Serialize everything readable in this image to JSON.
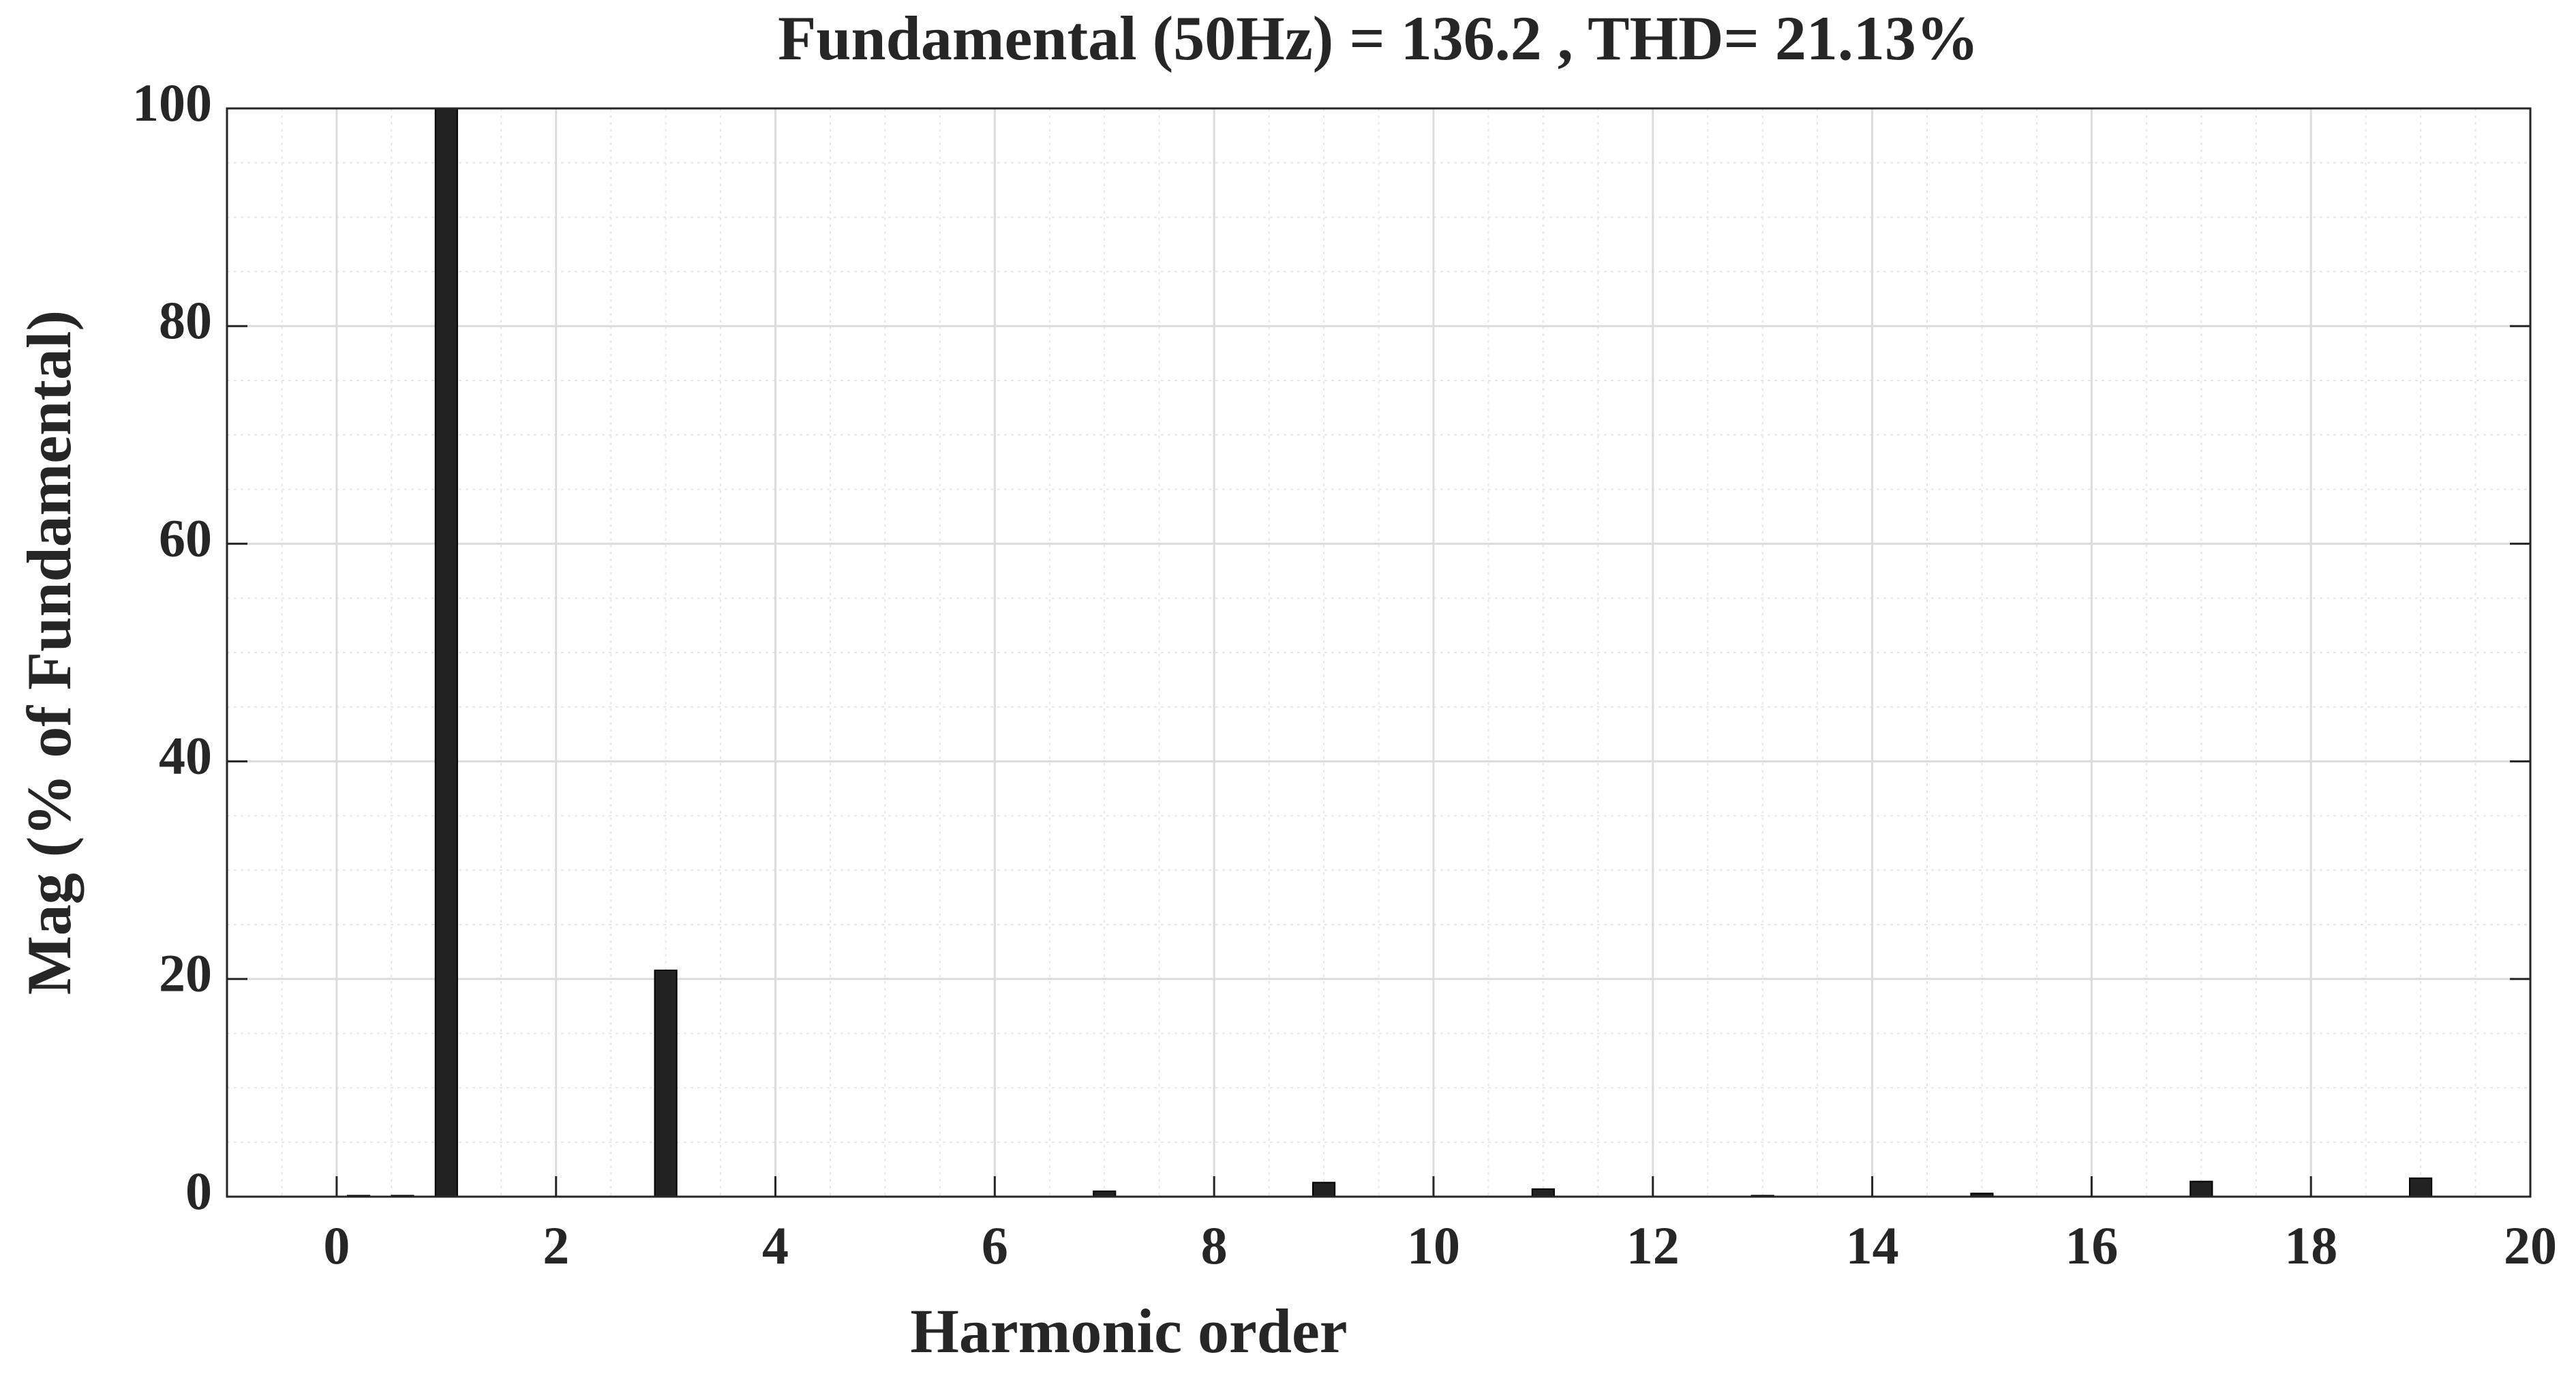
{
  "chart_data": {
    "type": "bar",
    "title": "Fundamental (50Hz) = 136.2 , THD= 21.13%",
    "x_label": "Harmonic order",
    "y_label": "Mag (% of Fundamental)",
    "x": [
      0.2,
      0.6,
      1,
      3,
      7,
      9,
      11,
      13,
      15,
      17,
      19
    ],
    "values": [
      0.1,
      0.1,
      100,
      20.8,
      0.5,
      1.3,
      0.7,
      0.1,
      0.3,
      1.4,
      1.7
    ],
    "color": "#222222",
    "xlim": [
      -1,
      20
    ],
    "xticks": [
      0,
      2,
      4,
      6,
      8,
      10,
      12,
      14,
      16,
      18,
      20
    ],
    "ylim": [
      0,
      100
    ],
    "yticks": [
      0,
      20,
      40,
      60,
      80,
      100
    ],
    "grid": true,
    "minor_grid": true
  }
}
